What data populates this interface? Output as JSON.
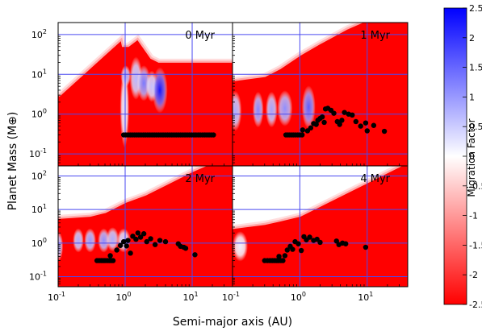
{
  "chart_data": {
    "type": "heatmap",
    "xlabel": "Semi-major axis (AU)",
    "ylabel": "Planet Mass (M⊕)",
    "xscale": "log",
    "yscale": "log",
    "xlim": [
      0.1,
      40
    ],
    "ylim": [
      0.05,
      200
    ],
    "x_ticks": [
      {
        "v": 0.1,
        "base": "10",
        "exp": "-1"
      },
      {
        "v": 1,
        "base": "10",
        "exp": "0"
      },
      {
        "v": 10,
        "base": "10",
        "exp": "1"
      }
    ],
    "y_ticks": [
      {
        "v": 0.1,
        "base": "10",
        "exp": "-1"
      },
      {
        "v": 1,
        "base": "10",
        "exp": "0"
      },
      {
        "v": 10,
        "base": "10",
        "exp": "1"
      },
      {
        "v": 100,
        "base": "10",
        "exp": "2"
      }
    ],
    "colorbar": {
      "label": "Migration Factor",
      "min": -2.5,
      "max": 2.5,
      "ticks": [
        "2.5",
        "2",
        "1.5",
        "1",
        "0.5",
        "0",
        "-0.5",
        "-1",
        "-1.5",
        "-2",
        "-2.5"
      ],
      "colors": {
        "positive": "#0000ff",
        "zero": "#ffffff",
        "negative": "#ff0000"
      }
    },
    "grid": true,
    "grid_color": "#4a4af0",
    "panels": [
      {
        "label": "0 Myr",
        "ceiling": [
          [
            0.1,
            3
          ],
          [
            0.9,
            85
          ],
          [
            0.95,
            55
          ],
          [
            1.1,
            55
          ],
          [
            1.55,
            85
          ],
          [
            2.5,
            27
          ],
          [
            3.2,
            22
          ],
          [
            6,
            22
          ],
          [
            20,
            22
          ],
          [
            40,
            22
          ]
        ],
        "ceiling_cutoff": 2.5,
        "bands": [
          {
            "a": 0.98,
            "m": 1.4,
            "w": 0.025,
            "h": 0.55,
            "v": 0.3
          },
          {
            "a": 1.02,
            "m": 9.0,
            "w": 0.03,
            "h": 0.15,
            "v": 0.9
          },
          {
            "a": 1.45,
            "m": 8.0,
            "w": 0.045,
            "h": 0.3,
            "v": 0.7
          },
          {
            "a": 1.9,
            "m": 6.0,
            "w": 0.05,
            "h": 0.25,
            "v": 1.3
          },
          {
            "a": 2.5,
            "m": 5.0,
            "w": 0.04,
            "h": 0.22,
            "v": 0.6
          },
          {
            "a": 3.3,
            "m": 4.0,
            "w": 0.06,
            "h": 0.32,
            "v": 2.3
          }
        ],
        "planets": [
          {
            "a": 0.95,
            "m": 0.3
          },
          {
            "a": 1.02,
            "m": 0.3
          },
          {
            "a": 1.1,
            "m": 0.3
          },
          {
            "a": 1.19,
            "m": 0.3
          },
          {
            "a": 1.28,
            "m": 0.3
          },
          {
            "a": 1.38,
            "m": 0.3
          },
          {
            "a": 1.49,
            "m": 0.3
          },
          {
            "a": 1.6,
            "m": 0.3
          },
          {
            "a": 1.73,
            "m": 0.3
          },
          {
            "a": 1.87,
            "m": 0.3
          },
          {
            "a": 2.01,
            "m": 0.3
          },
          {
            "a": 2.17,
            "m": 0.3
          },
          {
            "a": 2.34,
            "m": 0.3
          },
          {
            "a": 2.52,
            "m": 0.3
          },
          {
            "a": 2.72,
            "m": 0.3
          },
          {
            "a": 2.93,
            "m": 0.3
          },
          {
            "a": 3.16,
            "m": 0.3
          },
          {
            "a": 3.41,
            "m": 0.3
          },
          {
            "a": 3.68,
            "m": 0.3
          },
          {
            "a": 3.97,
            "m": 0.3
          },
          {
            "a": 4.28,
            "m": 0.3
          },
          {
            "a": 4.61,
            "m": 0.3
          },
          {
            "a": 4.97,
            "m": 0.3
          },
          {
            "a": 5.36,
            "m": 0.3
          },
          {
            "a": 5.78,
            "m": 0.3
          },
          {
            "a": 6.23,
            "m": 0.3
          },
          {
            "a": 6.72,
            "m": 0.3
          },
          {
            "a": 7.25,
            "m": 0.3
          },
          {
            "a": 7.81,
            "m": 0.3
          },
          {
            "a": 8.43,
            "m": 0.3
          },
          {
            "a": 9.08,
            "m": 0.3
          },
          {
            "a": 9.8,
            "m": 0.3
          },
          {
            "a": 10.6,
            "m": 0.3
          },
          {
            "a": 11.4,
            "m": 0.3
          },
          {
            "a": 12.3,
            "m": 0.3
          },
          {
            "a": 13.2,
            "m": 0.3
          },
          {
            "a": 14.3,
            "m": 0.3
          },
          {
            "a": 15.4,
            "m": 0.3
          },
          {
            "a": 16.6,
            "m": 0.3
          },
          {
            "a": 17.9,
            "m": 0.3
          },
          {
            "a": 19.3,
            "m": 0.3
          },
          {
            "a": 20.8,
            "m": 0.3
          }
        ]
      },
      {
        "label": "1 Myr",
        "ceiling": [
          [
            0.1,
            7.5
          ],
          [
            0.3,
            9.6
          ],
          [
            0.5,
            15
          ],
          [
            1.0,
            33
          ],
          [
            2.0,
            65
          ],
          [
            5.0,
            150
          ],
          [
            10,
            250
          ],
          [
            40,
            600
          ]
        ],
        "ceiling_cutoff": 0,
        "bands": [
          {
            "a": 0.11,
            "m": 1.2,
            "w": 0.045,
            "h": 0.28,
            "v": 0.8
          },
          {
            "a": 0.24,
            "m": 1.3,
            "w": 0.035,
            "h": 0.25,
            "v": 1.2
          },
          {
            "a": 0.38,
            "m": 1.3,
            "w": 0.04,
            "h": 0.25,
            "v": 0.9
          },
          {
            "a": 0.6,
            "m": 1.4,
            "w": 0.06,
            "h": 0.25,
            "v": 1.1
          },
          {
            "a": 1.35,
            "m": 1.5,
            "w": 0.05,
            "h": 0.3,
            "v": 1.6
          }
        ],
        "planets": [
          {
            "a": 0.62,
            "m": 0.3
          },
          {
            "a": 0.66,
            "m": 0.3
          },
          {
            "a": 0.7,
            "m": 0.3
          },
          {
            "a": 0.75,
            "m": 0.3
          },
          {
            "a": 0.8,
            "m": 0.3
          },
          {
            "a": 0.86,
            "m": 0.3
          },
          {
            "a": 0.93,
            "m": 0.3
          },
          {
            "a": 1.0,
            "m": 0.3
          },
          {
            "a": 1.08,
            "m": 0.3
          },
          {
            "a": 1.1,
            "m": 0.4
          },
          {
            "a": 1.3,
            "m": 0.38
          },
          {
            "a": 1.45,
            "m": 0.45
          },
          {
            "a": 1.6,
            "m": 0.58
          },
          {
            "a": 1.75,
            "m": 0.55
          },
          {
            "a": 1.85,
            "m": 0.7
          },
          {
            "a": 2.0,
            "m": 0.78
          },
          {
            "a": 2.15,
            "m": 0.85
          },
          {
            "a": 2.3,
            "m": 0.62
          },
          {
            "a": 2.4,
            "m": 1.35
          },
          {
            "a": 2.6,
            "m": 1.4
          },
          {
            "a": 2.9,
            "m": 1.25
          },
          {
            "a": 3.2,
            "m": 1.05
          },
          {
            "a": 3.6,
            "m": 0.65
          },
          {
            "a": 3.9,
            "m": 0.55
          },
          {
            "a": 4.2,
            "m": 0.7
          },
          {
            "a": 4.6,
            "m": 1.1
          },
          {
            "a": 5.3,
            "m": 1.0
          },
          {
            "a": 6.0,
            "m": 0.95
          },
          {
            "a": 6.8,
            "m": 0.65
          },
          {
            "a": 8.0,
            "m": 0.5
          },
          {
            "a": 9.5,
            "m": 0.6
          },
          {
            "a": 10.0,
            "m": 0.38
          },
          {
            "a": 12.5,
            "m": 0.52
          },
          {
            "a": 18.0,
            "m": 0.37
          }
        ]
      },
      {
        "label": "2 Myr",
        "ceiling": [
          [
            0.1,
            6
          ],
          [
            0.3,
            7
          ],
          [
            0.5,
            9
          ],
          [
            1.0,
            18
          ],
          [
            2.0,
            30
          ],
          [
            5.0,
            75
          ],
          [
            10,
            150
          ],
          [
            40,
            500
          ]
        ],
        "ceiling_cutoff": 0,
        "bands": [
          {
            "a": 0.1,
            "m": 0.8,
            "w": 0.03,
            "h": 0.25,
            "v": 0.9
          },
          {
            "a": 0.2,
            "m": 1.2,
            "w": 0.035,
            "h": 0.2,
            "v": 0.8
          },
          {
            "a": 0.3,
            "m": 1.2,
            "w": 0.04,
            "h": 0.2,
            "v": 1.0
          },
          {
            "a": 0.48,
            "m": 1.2,
            "w": 0.04,
            "h": 0.2,
            "v": 1.1
          },
          {
            "a": 0.65,
            "m": 1.3,
            "w": 0.045,
            "h": 0.2,
            "v": 0.8
          },
          {
            "a": 0.95,
            "m": 1.2,
            "w": 0.05,
            "h": 0.2,
            "v": 0.5
          }
        ],
        "planets": [
          {
            "a": 0.38,
            "m": 0.3
          },
          {
            "a": 0.41,
            "m": 0.3
          },
          {
            "a": 0.44,
            "m": 0.3
          },
          {
            "a": 0.47,
            "m": 0.3
          },
          {
            "a": 0.5,
            "m": 0.3
          },
          {
            "a": 0.54,
            "m": 0.3
          },
          {
            "a": 0.58,
            "m": 0.3
          },
          {
            "a": 0.62,
            "m": 0.3
          },
          {
            "a": 0.66,
            "m": 0.3
          },
          {
            "a": 0.6,
            "m": 0.42
          },
          {
            "a": 0.75,
            "m": 0.62
          },
          {
            "a": 0.85,
            "m": 0.85
          },
          {
            "a": 0.95,
            "m": 1.1
          },
          {
            "a": 1.05,
            "m": 0.82
          },
          {
            "a": 1.1,
            "m": 1.2
          },
          {
            "a": 1.2,
            "m": 0.5
          },
          {
            "a": 1.3,
            "m": 1.6
          },
          {
            "a": 1.45,
            "m": 1.3
          },
          {
            "a": 1.55,
            "m": 2.0
          },
          {
            "a": 1.7,
            "m": 1.5
          },
          {
            "a": 1.9,
            "m": 1.9
          },
          {
            "a": 2.1,
            "m": 1.1
          },
          {
            "a": 2.4,
            "m": 1.35
          },
          {
            "a": 2.8,
            "m": 0.9
          },
          {
            "a": 3.3,
            "m": 1.2
          },
          {
            "a": 4.0,
            "m": 1.1
          },
          {
            "a": 6.2,
            "m": 0.95
          },
          {
            "a": 6.7,
            "m": 0.8
          },
          {
            "a": 7.5,
            "m": 0.75
          },
          {
            "a": 8.0,
            "m": 0.7
          },
          {
            "a": 11.0,
            "m": 0.45
          }
        ]
      },
      {
        "label": "4 Myr",
        "ceiling": [
          [
            0.1,
            3
          ],
          [
            0.3,
            4
          ],
          [
            0.5,
            5
          ],
          [
            1.0,
            7
          ],
          [
            2.0,
            14
          ],
          [
            5.0,
            35
          ],
          [
            10,
            70
          ],
          [
            40,
            280
          ]
        ],
        "ceiling_cutoff": 0,
        "bands": [
          {
            "a": 0.13,
            "m": 0.8,
            "w": 0.06,
            "h": 0.25,
            "v": 0.15
          }
        ],
        "planets": [
          {
            "a": 0.3,
            "m": 0.3
          },
          {
            "a": 0.33,
            "m": 0.3
          },
          {
            "a": 0.36,
            "m": 0.3
          },
          {
            "a": 0.39,
            "m": 0.3
          },
          {
            "a": 0.42,
            "m": 0.3
          },
          {
            "a": 0.45,
            "m": 0.3
          },
          {
            "a": 0.48,
            "m": 0.3
          },
          {
            "a": 0.52,
            "m": 0.3
          },
          {
            "a": 0.56,
            "m": 0.3
          },
          {
            "a": 0.49,
            "m": 0.4
          },
          {
            "a": 0.6,
            "m": 0.42
          },
          {
            "a": 0.65,
            "m": 0.62
          },
          {
            "a": 0.72,
            "m": 0.8
          },
          {
            "a": 0.78,
            "m": 0.65
          },
          {
            "a": 0.85,
            "m": 1.1
          },
          {
            "a": 0.95,
            "m": 0.95
          },
          {
            "a": 1.05,
            "m": 0.6
          },
          {
            "a": 1.15,
            "m": 1.55
          },
          {
            "a": 1.25,
            "m": 1.25
          },
          {
            "a": 1.4,
            "m": 1.5
          },
          {
            "a": 1.6,
            "m": 1.2
          },
          {
            "a": 1.8,
            "m": 1.3
          },
          {
            "a": 2.0,
            "m": 1.05
          },
          {
            "a": 3.5,
            "m": 1.15
          },
          {
            "a": 3.8,
            "m": 0.9
          },
          {
            "a": 4.3,
            "m": 1.0
          },
          {
            "a": 4.8,
            "m": 0.95
          },
          {
            "a": 9.5,
            "m": 0.75
          }
        ]
      }
    ]
  }
}
